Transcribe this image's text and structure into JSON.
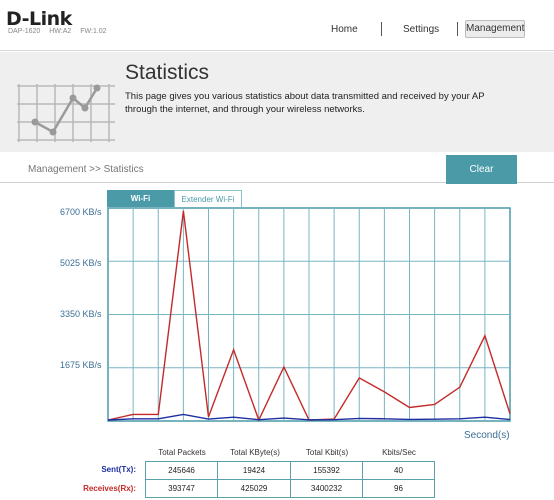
{
  "header": {
    "logo": "D-Link",
    "model": "DAP-1620",
    "hw": "HW:A2",
    "fw": "FW:1.02",
    "nav": [
      "Home",
      "Settings",
      "Management"
    ]
  },
  "banner": {
    "title": "Statistics",
    "description": "This page gives you various statistics about data transmitted and received by your AP through the internet, and through your wireless networks."
  },
  "breadcrumb": "Management >> Statistics",
  "clear_label": "Clear",
  "tabs": [
    "Wi-Fi",
    "Extender Wi-Fi"
  ],
  "chart_data": {
    "type": "line",
    "ylabel_unit": "KB/s",
    "yticks": [
      "6700 KB/s",
      "5025 KB/s",
      "3350 KB/s",
      "1675 KB/s"
    ],
    "ylim": [
      0,
      6700
    ],
    "xlabel": "Second(s)",
    "grid": true,
    "colors": {
      "tx": "#1c2ea0",
      "rx": "#c42a2a",
      "grid": "#79b6c2",
      "border": "#4a9aa8"
    },
    "series": [
      {
        "key": "rx",
        "values": [
          0,
          180,
          180,
          6700,
          100,
          2250,
          0,
          1700,
          0,
          30,
          1350,
          900,
          400,
          500,
          1050,
          2700,
          200
        ]
      },
      {
        "key": "tx",
        "values": [
          0,
          40,
          40,
          180,
          30,
          90,
          10,
          60,
          5,
          10,
          50,
          40,
          20,
          25,
          40,
          90,
          15
        ]
      }
    ]
  },
  "stats": {
    "columns": [
      "Total Packets",
      "Total KByte(s)",
      "Total Kbit(s)",
      "Kbits/Sec"
    ],
    "rows": [
      {
        "label": "Sent(Tx):",
        "values": [
          "245646",
          "19424",
          "155392",
          "40"
        ]
      },
      {
        "label": "Receives(Rx):",
        "values": [
          "393747",
          "425029",
          "3400232",
          "96"
        ]
      }
    ]
  }
}
